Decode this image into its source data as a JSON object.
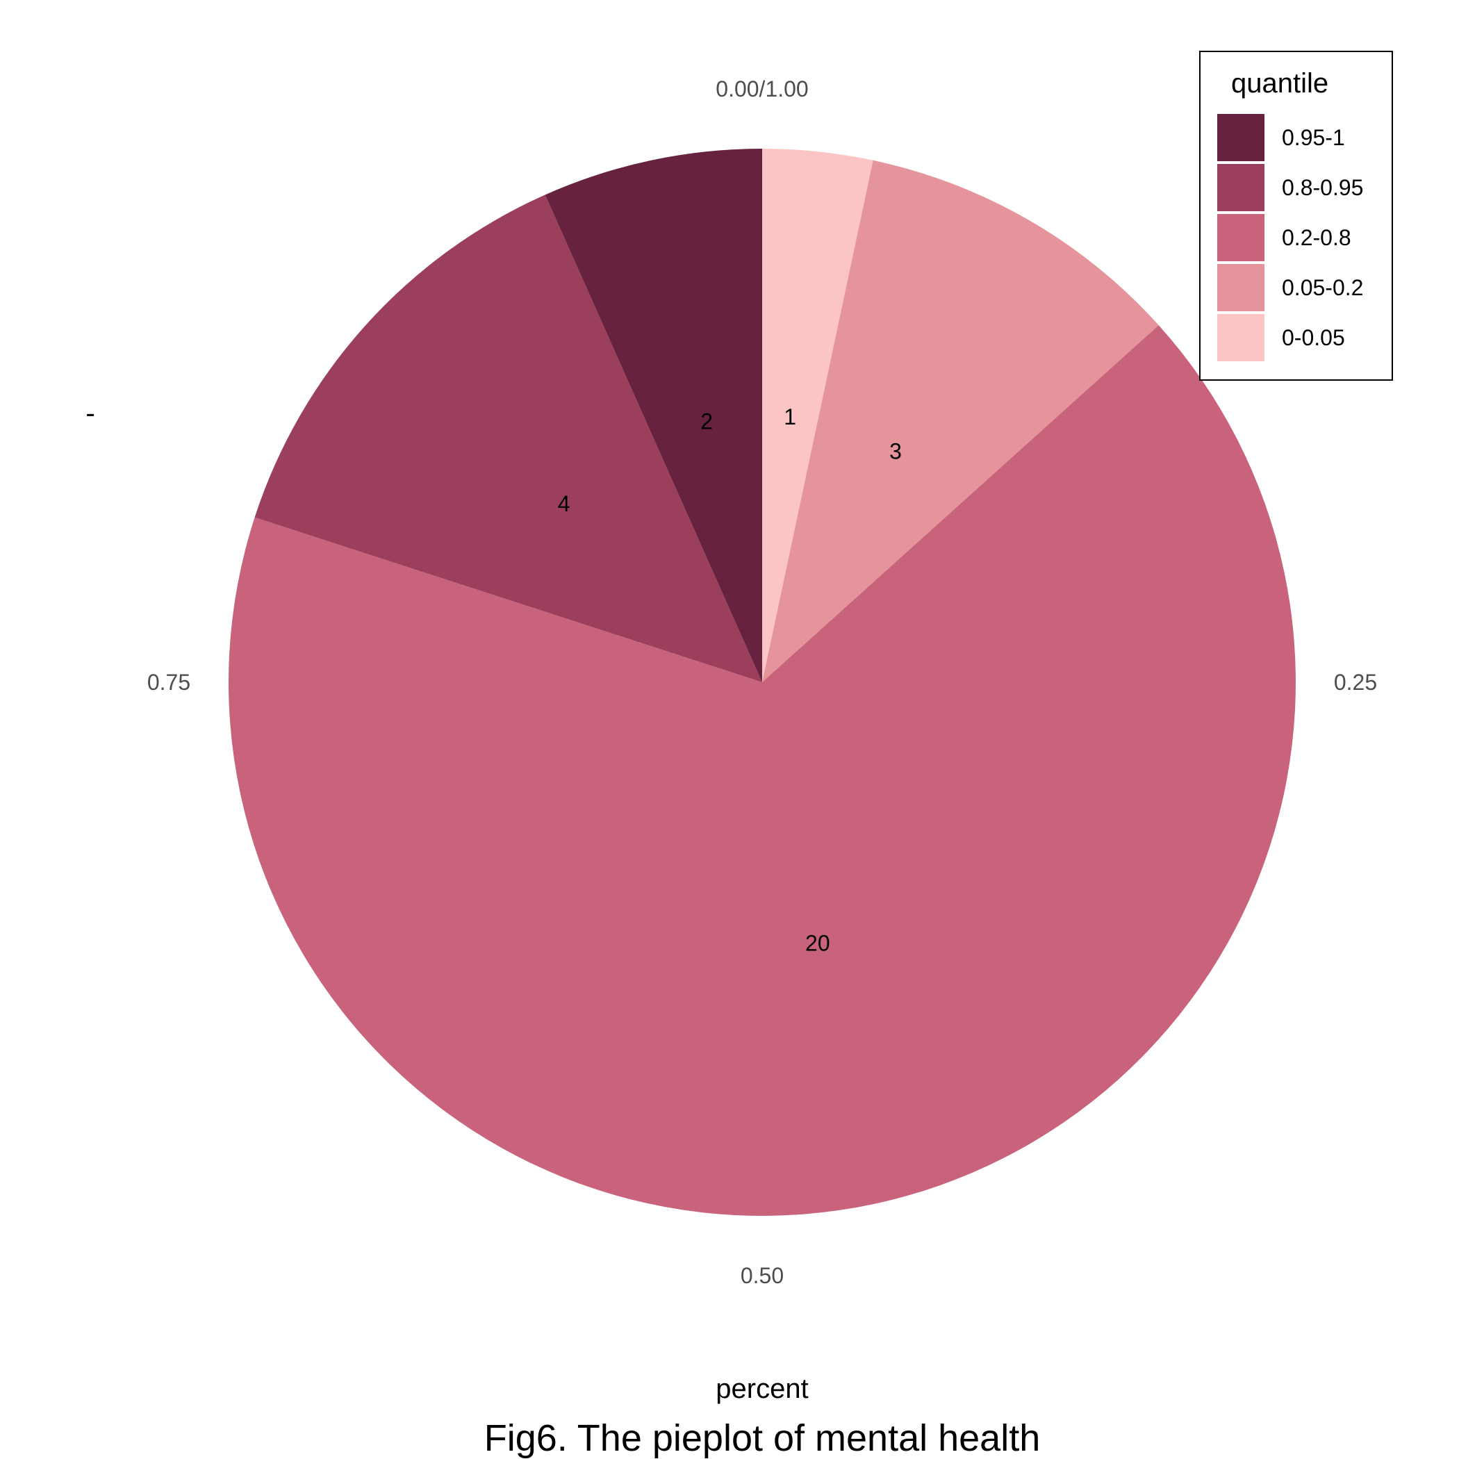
{
  "chart_data": {
    "type": "pie",
    "slices": [
      {
        "label": "1",
        "value": 1,
        "quantile": "0-0.05",
        "color": "#FCC5C5"
      },
      {
        "label": "3",
        "value": 3,
        "quantile": "0.05-0.2",
        "color": "#E5949C"
      },
      {
        "label": "20",
        "value": 20,
        "quantile": "0.2-0.8",
        "color": "#C9637B"
      },
      {
        "label": "4",
        "value": 4,
        "quantile": "0.8-0.95",
        "color": "#9B3F5C"
      },
      {
        "label": "2",
        "value": 2,
        "quantile": "0.95-1",
        "color": "#66223F"
      }
    ],
    "angular_ticks": [
      {
        "label": "0.00/1.00",
        "value": 0
      },
      {
        "label": "0.25",
        "value": 0.25
      },
      {
        "label": "0.50",
        "value": 0.5
      },
      {
        "label": "0.75",
        "value": 0.75
      }
    ],
    "y_axis_label": "-",
    "x_axis_label": "percent",
    "caption": "Fig6. The pieplot of mental health",
    "legend": {
      "title": "quantile",
      "placement": "top-right",
      "entries": [
        {
          "label": "0.95-1",
          "color": "#66223F"
        },
        {
          "label": "0.8-0.95",
          "color": "#9B3F5C"
        },
        {
          "label": "0.2-0.8",
          "color": "#C9637B"
        },
        {
          "label": "0.05-0.2",
          "color": "#E5949C"
        },
        {
          "label": "0-0.05",
          "color": "#FCC5C5"
        }
      ]
    }
  }
}
